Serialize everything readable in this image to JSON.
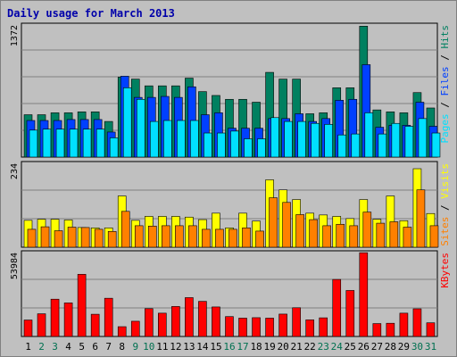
{
  "title": "Daily usage for March 2013",
  "colors": {
    "background": "#c0c0c0",
    "plot": "#c0c0c0",
    "grid": "#808080",
    "title": "#0000aa",
    "weekday": "#000000",
    "weekend": "#007050",
    "hits": "#008060",
    "files": "#0040ff",
    "pages": "#00e0ff",
    "visits": "#ffff00",
    "sites": "#ff8000",
    "kbytes": "#ff0000",
    "divider": "#000000"
  },
  "chart_data": [
    {
      "type": "bar",
      "panel": "top",
      "ylabel_max": "1372",
      "ylim": [
        0,
        1372
      ],
      "grid": true,
      "categories": [
        "1",
        "2",
        "3",
        "4",
        "5",
        "6",
        "7",
        "8",
        "9",
        "10",
        "11",
        "12",
        "13",
        "14",
        "15",
        "16",
        "17",
        "18",
        "19",
        "20",
        "21",
        "22",
        "23",
        "24",
        "25",
        "26",
        "27",
        "28",
        "29",
        "30",
        "31"
      ],
      "weekend_days": [
        "2",
        "3",
        "9",
        "10",
        "16",
        "17",
        "23",
        "24",
        "30",
        "31"
      ],
      "side_labels": [
        {
          "text": "Pages",
          "color": "#00e0ff"
        },
        {
          "text": " / ",
          "color": "#000000"
        },
        {
          "text": "Files",
          "color": "#0040ff"
        },
        {
          "text": " / ",
          "color": "#000000"
        },
        {
          "text": "Hits",
          "color": "#008060"
        }
      ],
      "series": [
        {
          "name": "Hits",
          "values": [
            440,
            440,
            460,
            460,
            470,
            470,
            370,
            830,
            810,
            740,
            740,
            740,
            820,
            680,
            640,
            600,
            600,
            570,
            880,
            810,
            810,
            450,
            460,
            720,
            720,
            1360,
            490,
            470,
            460,
            670,
            510
          ]
        },
        {
          "name": "Files",
          "values": [
            380,
            380,
            380,
            390,
            390,
            390,
            260,
            840,
            620,
            620,
            630,
            620,
            730,
            440,
            460,
            300,
            300,
            300,
            400,
            400,
            450,
            370,
            400,
            590,
            600,
            960,
            310,
            330,
            330,
            570,
            320
          ]
        },
        {
          "name": "Pages",
          "values": [
            280,
            290,
            290,
            290,
            290,
            290,
            200,
            720,
            600,
            370,
            380,
            380,
            380,
            250,
            250,
            270,
            190,
            190,
            410,
            370,
            370,
            350,
            340,
            230,
            240,
            460,
            240,
            350,
            320,
            400,
            250
          ]
        }
      ]
    },
    {
      "type": "bar",
      "panel": "middle",
      "ylabel_max": "234",
      "ylim": [
        0,
        234
      ],
      "grid": true,
      "categories": [
        "1",
        "2",
        "3",
        "4",
        "5",
        "6",
        "7",
        "8",
        "9",
        "10",
        "11",
        "12",
        "13",
        "14",
        "15",
        "16",
        "17",
        "18",
        "19",
        "20",
        "21",
        "22",
        "23",
        "24",
        "25",
        "26",
        "27",
        "28",
        "29",
        "30",
        "31"
      ],
      "side_labels": [
        {
          "text": "Sites",
          "color": "#ff8000"
        },
        {
          "text": " / ",
          "color": "#000000"
        },
        {
          "text": "Visits",
          "color": "#ffff00"
        }
      ],
      "series": [
        {
          "name": "Visits",
          "values": [
            75,
            78,
            78,
            76,
            55,
            54,
            54,
            143,
            75,
            86,
            86,
            86,
            84,
            77,
            95,
            54,
            95,
            73,
            188,
            160,
            133,
            95,
            90,
            86,
            80,
            133,
            78,
            143,
            74,
            219,
            94
          ]
        },
        {
          "name": "Sites",
          "values": [
            50,
            57,
            46,
            56,
            55,
            50,
            44,
            100,
            60,
            59,
            60,
            60,
            60,
            50,
            50,
            50,
            54,
            45,
            138,
            125,
            91,
            77,
            60,
            64,
            60,
            98,
            67,
            71,
            56,
            160,
            60
          ]
        }
      ]
    },
    {
      "type": "bar",
      "panel": "bottom",
      "ylabel_max": "53984",
      "ylim": [
        0,
        53984
      ],
      "grid": true,
      "categories": [
        "1",
        "2",
        "3",
        "4",
        "5",
        "6",
        "7",
        "8",
        "9",
        "10",
        "11",
        "12",
        "13",
        "14",
        "15",
        "16",
        "17",
        "18",
        "19",
        "20",
        "21",
        "22",
        "23",
        "24",
        "25",
        "26",
        "27",
        "28",
        "29",
        "30",
        "31"
      ],
      "side_labels": [
        {
          "text": "KBytes",
          "color": "#ff0000"
        }
      ],
      "series": [
        {
          "name": "KBytes",
          "values": [
            10600,
            14600,
            24000,
            21600,
            40000,
            14300,
            24600,
            6300,
            9800,
            17900,
            15000,
            19300,
            25000,
            22600,
            19000,
            12800,
            11800,
            12100,
            11800,
            14400,
            18500,
            10700,
            12000,
            36700,
            29600,
            53900,
            8300,
            8500,
            15000,
            17800,
            8800
          ]
        }
      ]
    }
  ]
}
